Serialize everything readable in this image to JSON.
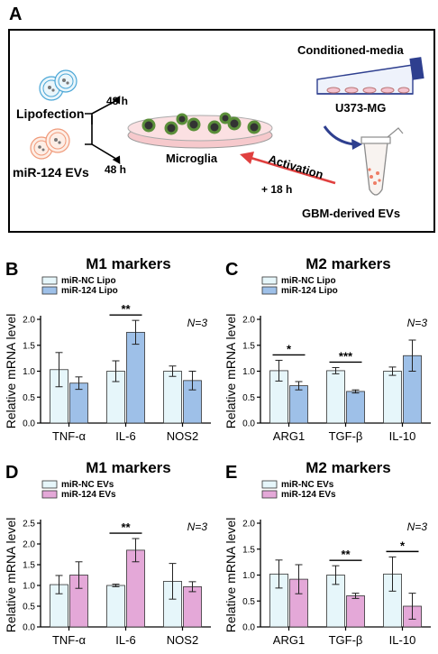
{
  "panel_a": {
    "letter": "A",
    "lipofection": "Lipofection",
    "mir124_evs": "miR-124 EVs",
    "time_top": "48 h",
    "time_bottom": "48 h",
    "microglia": "Microglia",
    "activation": "Activation",
    "time_18": "+ 18 h",
    "conditioned_media": "Conditioned-media",
    "cell_line": "U373-MG",
    "gbm_evs": "GBM-derived EVs"
  },
  "colors": {
    "light_blue": "#e6f6fa",
    "blue": "#9ec0e8",
    "pink": "#e4a8d8",
    "red_arrow": "#e0403f",
    "navy": "#2e3f8f"
  },
  "chart_data": [
    {
      "panel": "B",
      "type": "bar",
      "title": "M1 markers",
      "ylabel": "Relative mRNA level",
      "ylim": [
        0,
        2.0
      ],
      "yticks": [
        "0.0",
        "0.5",
        "1.0",
        "1.5",
        "2.0"
      ],
      "n_label": "N=3",
      "categories": [
        "TNF-α",
        "IL-6",
        "NOS2"
      ],
      "series": [
        {
          "name": "miR-NC Lipo",
          "values": [
            1.03,
            1.0,
            1.0
          ],
          "errors": [
            0.33,
            0.2,
            0.1
          ]
        },
        {
          "name": "miR-124 Lipo",
          "values": [
            0.77,
            1.75,
            0.82
          ],
          "errors": [
            0.12,
            0.23,
            0.18
          ]
        }
      ],
      "significance": [
        {
          "category": 1,
          "label": "**"
        }
      ]
    },
    {
      "panel": "C",
      "type": "bar",
      "title": "M2 markers",
      "ylabel": "Relative mRNA level",
      "ylim": [
        0,
        2.0
      ],
      "yticks": [
        "0.0",
        "0.5",
        "1.0",
        "1.5",
        "2.0"
      ],
      "n_label": "N=3",
      "categories": [
        "ARG1",
        "TGF-β",
        "IL-10"
      ],
      "series": [
        {
          "name": "miR-NC Lipo",
          "values": [
            1.01,
            1.01,
            1.0
          ],
          "errors": [
            0.2,
            0.06,
            0.08
          ]
        },
        {
          "name": "miR-124 Lipo",
          "values": [
            0.72,
            0.61,
            1.3
          ],
          "errors": [
            0.08,
            0.03,
            0.3
          ]
        }
      ],
      "significance": [
        {
          "category": 0,
          "label": "*"
        },
        {
          "category": 1,
          "label": "***"
        }
      ]
    },
    {
      "panel": "D",
      "type": "bar",
      "title": "M1 markers",
      "ylabel": "Relative mRNA level",
      "ylim": [
        0,
        2.5
      ],
      "yticks": [
        "0.0",
        "0.5",
        "1.0",
        "1.5",
        "2.0",
        "2.5"
      ],
      "n_label": "N=3",
      "categories": [
        "TNF-α",
        "IL-6",
        "NOS2"
      ],
      "series": [
        {
          "name": "miR-NC EVs",
          "values": [
            1.02,
            1.0,
            1.1
          ],
          "errors": [
            0.22,
            0.03,
            0.43
          ]
        },
        {
          "name": "miR-124 EVs",
          "values": [
            1.25,
            1.85,
            0.97
          ],
          "errors": [
            0.32,
            0.28,
            0.12
          ]
        }
      ],
      "significance": [
        {
          "category": 1,
          "label": "**"
        }
      ]
    },
    {
      "panel": "E",
      "type": "bar",
      "title": "M2 markers",
      "ylabel": "Relative mRNA level",
      "ylim": [
        0,
        2.0
      ],
      "yticks": [
        "0.0",
        "0.5",
        "1.0",
        "1.5",
        "2.0"
      ],
      "n_label": "N=3",
      "categories": [
        "ARG1",
        "TGF-β",
        "IL-10"
      ],
      "series": [
        {
          "name": "miR-NC EVs",
          "values": [
            1.02,
            1.0,
            1.02
          ],
          "errors": [
            0.27,
            0.18,
            0.33
          ]
        },
        {
          "name": "miR-124 EVs",
          "values": [
            0.92,
            0.6,
            0.4
          ],
          "errors": [
            0.28,
            0.05,
            0.25
          ]
        }
      ],
      "significance": [
        {
          "category": 1,
          "label": "**"
        },
        {
          "category": 2,
          "label": "*"
        }
      ]
    }
  ]
}
